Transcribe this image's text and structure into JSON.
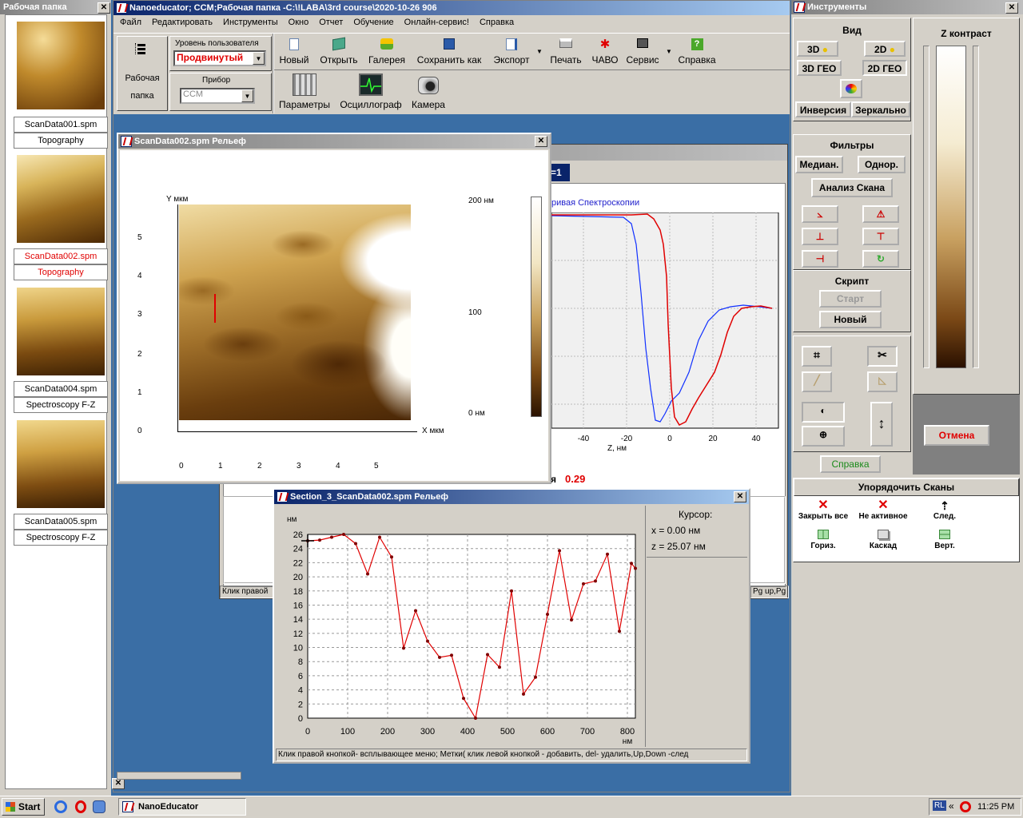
{
  "left_panel": {
    "title": "Рабочая папка",
    "items": [
      {
        "name": "ScanData001.spm",
        "type": "Topography"
      },
      {
        "name": "ScanData002.spm",
        "type": "Topography"
      },
      {
        "name": "ScanData004.spm",
        "type": "Spectroscopy F-Z"
      },
      {
        "name": "ScanData005.spm",
        "type": "Spectroscopy F-Z"
      }
    ]
  },
  "main_window": {
    "title": "Nanoeducator; CCM;Рабочая папка -C:\\!LABA\\3rd course\\2020-10-26 906",
    "menu": [
      "Файл",
      "Редактировать",
      "Инструменты",
      "Окно",
      "Отчет",
      "Обучение",
      "Онлайн-сервис!",
      "Справка"
    ],
    "workfolder_label_1": "Рабочая",
    "workfolder_label_2": "папка",
    "user_level_label": "Уровень пользователя",
    "user_level_value": "Продвинутый",
    "device_label": "Прибор",
    "device_value": "CCM",
    "toolbar": [
      "Новый",
      "Открыть",
      "Галерея",
      "Сохранить как",
      "Экспорт",
      "Печать",
      "ЧАВО",
      "Сервис",
      "Справка"
    ],
    "toolbar2": [
      "Параметры",
      "Осциллограф",
      "Камера"
    ]
  },
  "spectro_window": {
    "tab_label": "=1",
    "curve_title": "ривая Спектроскопии",
    "x_ticks": [
      "-40",
      "-20",
      "0",
      "20",
      "40"
    ],
    "x_label": "Z, нм",
    "value_label": "я",
    "value": "0.29",
    "status_left": "Клик правой",
    "status_right": "Pg up,Pg"
  },
  "scan_window": {
    "title": "ScanData002.spm  Рельеф",
    "y_label": "Y мкм",
    "x_label": "X мкм",
    "y_ticks": [
      "5",
      "4",
      "3",
      "2",
      "1",
      "0"
    ],
    "x_ticks": [
      "0",
      "1",
      "2",
      "3",
      "4",
      "5"
    ],
    "cbar_max": "200 нм",
    "cbar_mid": "100",
    "cbar_min": "0 нм"
  },
  "section_window": {
    "title": "Section_3_ScanData002.spm  Рельеф",
    "cursor_title": "Курсор:",
    "cursor_x": "x = 0.00  нм",
    "cursor_z": "z = 25.07  нм",
    "status": "Клик правой кнопкой-  всплывающее меню; Метки( клик левой кнопкой - добавить, del- удалить,Up,Down -след"
  },
  "chart_data": {
    "type": "line",
    "x_unit": "нм",
    "y_unit": "нм",
    "xlim": [
      0,
      820
    ],
    "ylim": [
      0,
      26
    ],
    "x_ticks": [
      "0",
      "100",
      "200",
      "300",
      "400",
      "500",
      "600",
      "700",
      "800"
    ],
    "y_ticks": [
      "0",
      "2",
      "4",
      "6",
      "8",
      "10",
      "12",
      "14",
      "16",
      "18",
      "20",
      "22",
      "24",
      "26"
    ],
    "line_color": "#e00000",
    "x": [
      0,
      30,
      60,
      90,
      120,
      150,
      180,
      210,
      240,
      270,
      300,
      330,
      360,
      390,
      420,
      450,
      480,
      510,
      540,
      570,
      600,
      630,
      660,
      690,
      720,
      750,
      780,
      810,
      840
    ],
    "y": [
      25.1,
      25.2,
      25.6,
      26,
      24.7,
      20.4,
      25.6,
      22.8,
      9.9,
      15.2,
      10.9,
      8.6,
      8.9,
      2.8,
      0,
      9,
      7.2,
      18,
      3.4,
      5.8,
      14.7,
      23.7,
      13.9,
      19,
      19.4,
      23.2,
      12.3,
      21.9,
      21.2
    ]
  },
  "tools_panel": {
    "title": "Инструменты",
    "view_title": "Вид",
    "btn_3d": "3D",
    "btn_2d": "2D",
    "btn_3dgeo": "3D ГЕО",
    "btn_2dgeo": "2D ГЕО",
    "btn_inversion": "Инверсия",
    "btn_mirror": "Зеркально",
    "filters_title": "Фильтры",
    "btn_median": "Медиан.",
    "btn_odnor": "Однор.",
    "btn_analysis": "Анализ Скана",
    "script_title": "Скрипт",
    "btn_start": "Старт",
    "btn_new": "Новый",
    "btn_help": "Справка",
    "z_contrast": "Z контраст",
    "btn_cancel": "Отмена",
    "arrange_title": "Упорядочить Сканы",
    "arrange": [
      "Закрыть все",
      "Не активное",
      "След.",
      "Гориз.",
      "Каскад",
      "Верт."
    ]
  },
  "taskbar": {
    "start": "Start",
    "task": "NanoEducator",
    "lang": "RL",
    "time": "11:25 PM"
  }
}
